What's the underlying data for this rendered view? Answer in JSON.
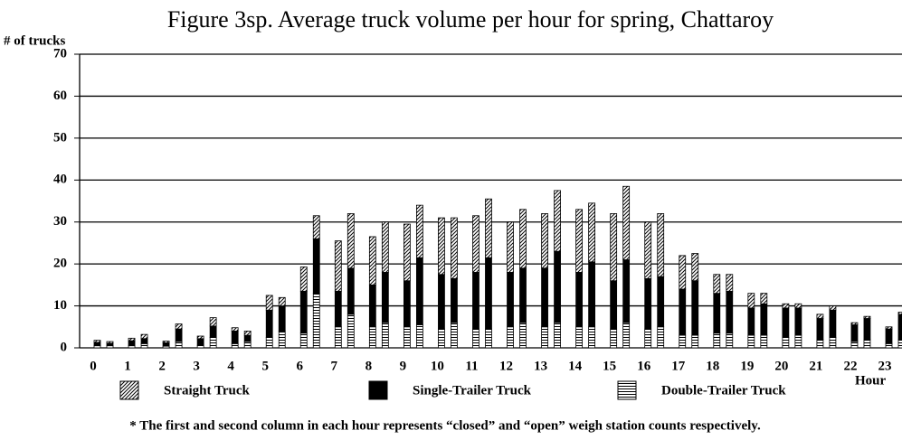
{
  "chart_data": {
    "type": "grouped_stacked_bar",
    "title": "Figure 3sp.  Average truck volume per hour for spring, Chattaroy",
    "y_label": "# of trucks",
    "x_label": "Hour",
    "footnote": "* The first and second column in each hour represents “closed” and “open” weigh station counts respectively.",
    "categories": [
      0,
      1,
      2,
      3,
      4,
      5,
      6,
      7,
      8,
      9,
      10,
      11,
      12,
      13,
      14,
      15,
      16,
      17,
      18,
      19,
      20,
      21,
      22,
      23
    ],
    "series": [
      {
        "name": "Double-Trailer Truck",
        "color": "#000000",
        "pattern": "horizontal",
        "values": [
          [
            0.5,
            0.5
          ],
          [
            0.5,
            1.0
          ],
          [
            0.4,
            1.5
          ],
          [
            0.6,
            2.5
          ],
          [
            1.0,
            1.5
          ],
          [
            2.5,
            4
          ],
          [
            3.5,
            13
          ],
          [
            5,
            8
          ],
          [
            5,
            6
          ],
          [
            5,
            5.5
          ],
          [
            4.5,
            6
          ],
          [
            4.5,
            4.5
          ],
          [
            5,
            6
          ],
          [
            5,
            6
          ],
          [
            5,
            5
          ],
          [
            4.5,
            6
          ],
          [
            4.5,
            5
          ],
          [
            3,
            3
          ],
          [
            3.5,
            3.5
          ],
          [
            3,
            3
          ],
          [
            2.5,
            3
          ],
          [
            2,
            2.5
          ],
          [
            1.5,
            2
          ],
          [
            1,
            2
          ]
        ]
      },
      {
        "name": "Single-Trailer Truck",
        "color": "#000000",
        "pattern": "solid",
        "values": [
          [
            0.8,
            0.6
          ],
          [
            1.2,
            1.2
          ],
          [
            0.8,
            3.0
          ],
          [
            1.6,
            2.7
          ],
          [
            3.0,
            1.5
          ],
          [
            6.5,
            6
          ],
          [
            10,
            13
          ],
          [
            8.5,
            11
          ],
          [
            10,
            12
          ],
          [
            11,
            16
          ],
          [
            13,
            10.5
          ],
          [
            13.5,
            17
          ],
          [
            13,
            13
          ],
          [
            14,
            17
          ],
          [
            13,
            15.5
          ],
          [
            11.5,
            15
          ],
          [
            12,
            12
          ],
          [
            11,
            13
          ],
          [
            9.5,
            10
          ],
          [
            6.5,
            7.5
          ],
          [
            7,
            6.5
          ],
          [
            5,
            6.5
          ],
          [
            4,
            5
          ],
          [
            3.5,
            6
          ]
        ]
      },
      {
        "name": "Straight Truck",
        "color": "#000000",
        "pattern": "diagonal",
        "values": [
          [
            0.5,
            0.4
          ],
          [
            0.6,
            1.0
          ],
          [
            0.4,
            1.2
          ],
          [
            0.6,
            2.0
          ],
          [
            0.8,
            1.0
          ],
          [
            3.5,
            2
          ],
          [
            5.8,
            5.5
          ],
          [
            12,
            13
          ],
          [
            11.5,
            12
          ],
          [
            13.5,
            12.5
          ],
          [
            13.5,
            14.5
          ],
          [
            13.5,
            14
          ],
          [
            12,
            14
          ],
          [
            13,
            14.5
          ],
          [
            15,
            14
          ],
          [
            16,
            17.5
          ],
          [
            13.5,
            15
          ],
          [
            8,
            6.5
          ],
          [
            4.5,
            4
          ],
          [
            3.5,
            2.5
          ],
          [
            1,
            1
          ],
          [
            1,
            1
          ],
          [
            0.5,
            0.5
          ],
          [
            0.5,
            0.5
          ]
        ]
      }
    ],
    "ylim": [
      0,
      70
    ],
    "yticks": [
      0,
      10,
      20,
      30,
      40,
      50,
      60,
      70
    ],
    "grid": true
  }
}
